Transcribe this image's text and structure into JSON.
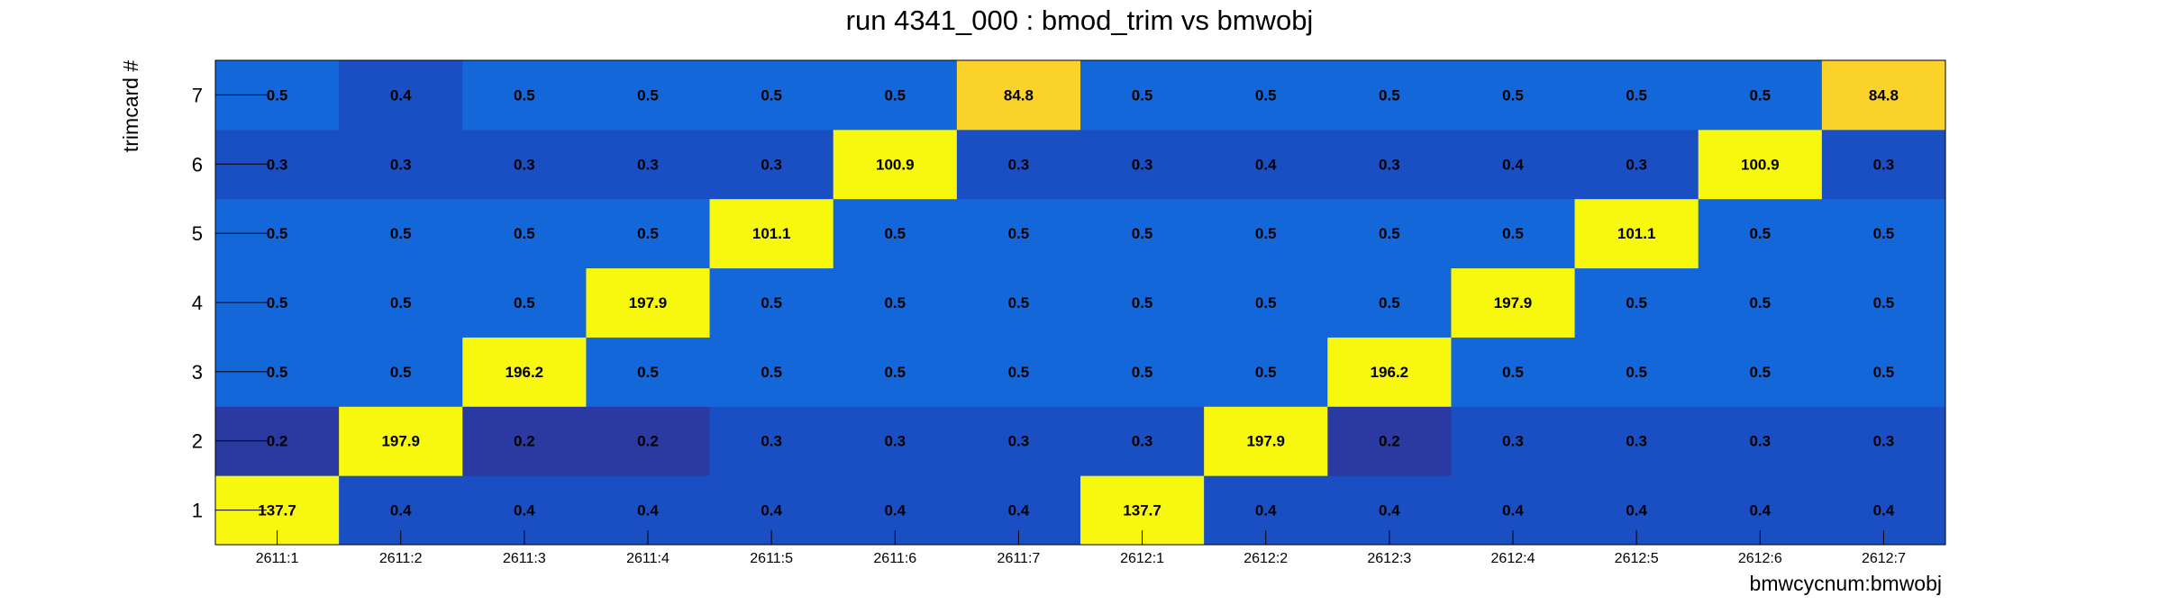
{
  "chart_data": {
    "type": "heatmap",
    "title": "run 4341_000 : bmod_trim vs bmwobj",
    "xlabel": "bmwcycnum:bmwobj",
    "ylabel": "trimcard #",
    "x_categories": [
      "2611:1",
      "2611:2",
      "2611:3",
      "2611:4",
      "2611:5",
      "2611:6",
      "2611:7",
      "2612:1",
      "2612:2",
      "2612:3",
      "2612:4",
      "2612:5",
      "2612:6",
      "2612:7"
    ],
    "y_categories": [
      "1",
      "2",
      "3",
      "4",
      "5",
      "6",
      "7"
    ],
    "values": [
      [
        137.7,
        0.4,
        0.4,
        0.4,
        0.4,
        0.4,
        0.4,
        137.7,
        0.4,
        0.4,
        0.4,
        0.4,
        0.4,
        0.4
      ],
      [
        0.2,
        197.9,
        0.2,
        0.2,
        0.3,
        0.3,
        0.3,
        0.3,
        197.9,
        0.2,
        0.3,
        0.3,
        0.3,
        0.3
      ],
      [
        0.5,
        0.5,
        196.2,
        0.5,
        0.5,
        0.5,
        0.5,
        0.5,
        0.5,
        196.2,
        0.5,
        0.5,
        0.5,
        0.5
      ],
      [
        0.5,
        0.5,
        0.5,
        197.9,
        0.5,
        0.5,
        0.5,
        0.5,
        0.5,
        0.5,
        197.9,
        0.5,
        0.5,
        0.5
      ],
      [
        0.5,
        0.5,
        0.5,
        0.5,
        101.1,
        0.5,
        0.5,
        0.5,
        0.5,
        0.5,
        0.5,
        101.1,
        0.5,
        0.5
      ],
      [
        0.3,
        0.3,
        0.3,
        0.3,
        0.3,
        100.9,
        0.3,
        0.3,
        0.4,
        0.3,
        0.4,
        0.3,
        100.9,
        0.3
      ],
      [
        0.5,
        0.4,
        0.5,
        0.5,
        0.5,
        0.5,
        84.8,
        0.5,
        0.5,
        0.5,
        0.5,
        0.5,
        0.5,
        84.8
      ]
    ],
    "colors": {
      "high": "#f8f80f",
      "mid_high": "#fad22a",
      "low_light": "#1467d8",
      "low_mid": "#1a4fc4",
      "low_dark": "#2b3aa2"
    },
    "grid": false,
    "legend": "none"
  }
}
